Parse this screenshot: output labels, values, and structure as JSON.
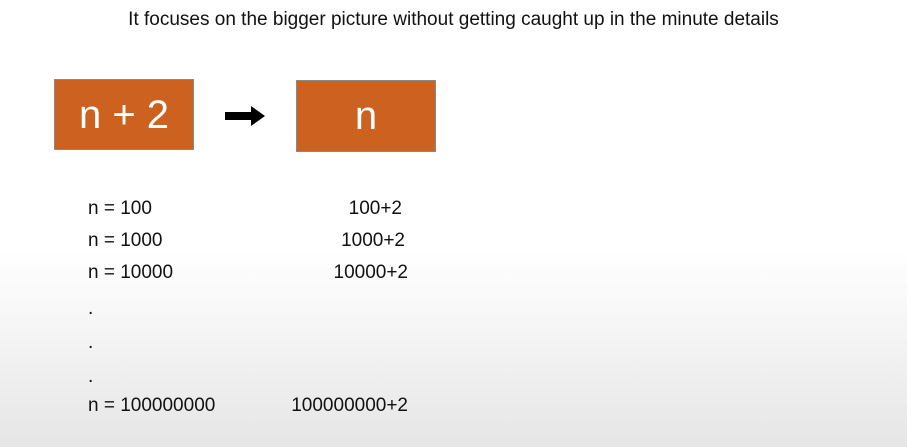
{
  "heading": "It focuses on the bigger picture without getting caught up in the minute details",
  "boxes": {
    "left_label": "n + 2",
    "right_label": "n",
    "fill_color": "#cd6120"
  },
  "arrow": {
    "icon": "right-arrow-icon"
  },
  "rows": [
    {
      "n": "n = 100",
      "value": "100+2"
    },
    {
      "n": "n = 1000",
      "value": "1000+2"
    },
    {
      "n": "n = 10000",
      "value": "10000+2"
    },
    {
      "n": "n = 100000000",
      "value": "100000000+2"
    }
  ],
  "ellipsis": [
    ".",
    ".",
    "."
  ]
}
